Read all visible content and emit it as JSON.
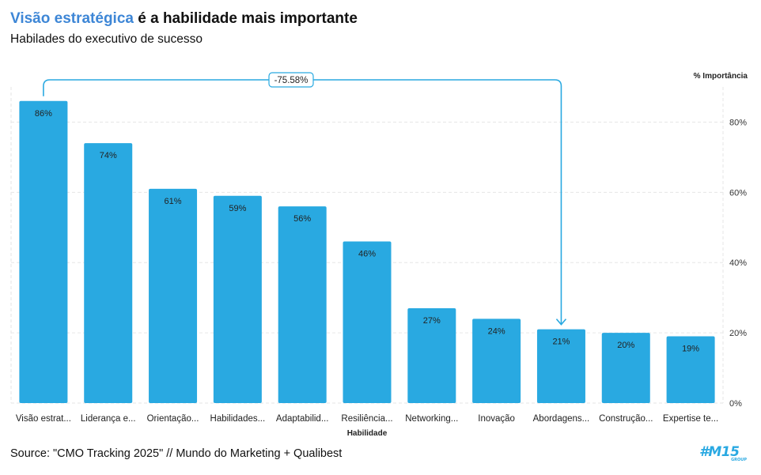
{
  "header": {
    "title_highlight": "Visão estratégica",
    "title_rest": " é a habilidade mais importante",
    "subtitle": "Habilades do executivo de sucesso"
  },
  "colors": {
    "bar": "#29a9e1",
    "accent_title": "#3d86d6",
    "annotation": "#29a9e1"
  },
  "chart_data": {
    "type": "bar",
    "title": "Visão estratégica é a habilidade mais importante",
    "subtitle": "Habilades do executivo de sucesso",
    "xlabel": "Habilidade",
    "ylabel": "% Importância",
    "y_axis_position": "right",
    "ylim": [
      0,
      90
    ],
    "yticks": [
      0,
      20,
      40,
      60,
      80
    ],
    "ytick_labels": [
      "0%",
      "20%",
      "40%",
      "60%",
      "80%"
    ],
    "grid": true,
    "categories": [
      "Visão estrat...",
      "Liderança e...",
      "Orientação...",
      "Habilidades...",
      "Adaptabilid...",
      "Resiliência...",
      "Networking...",
      "Inovação",
      "Abordagens...",
      "Construção...",
      "Expertise te..."
    ],
    "values": [
      86,
      74,
      61,
      59,
      56,
      46,
      27,
      24,
      21,
      20,
      19
    ],
    "data_labels": [
      "86%",
      "74%",
      "61%",
      "59%",
      "56%",
      "46%",
      "27%",
      "24%",
      "21%",
      "20%",
      "19%"
    ],
    "annotation": {
      "from_index": 0,
      "to_index": 8,
      "label": "-75.58%"
    }
  },
  "footer": {
    "source": "Source: \"CMO Tracking 2025\" // Mundo do Marketing + Qualibest",
    "brand": "#M15",
    "brand_sub": "GROUP"
  }
}
